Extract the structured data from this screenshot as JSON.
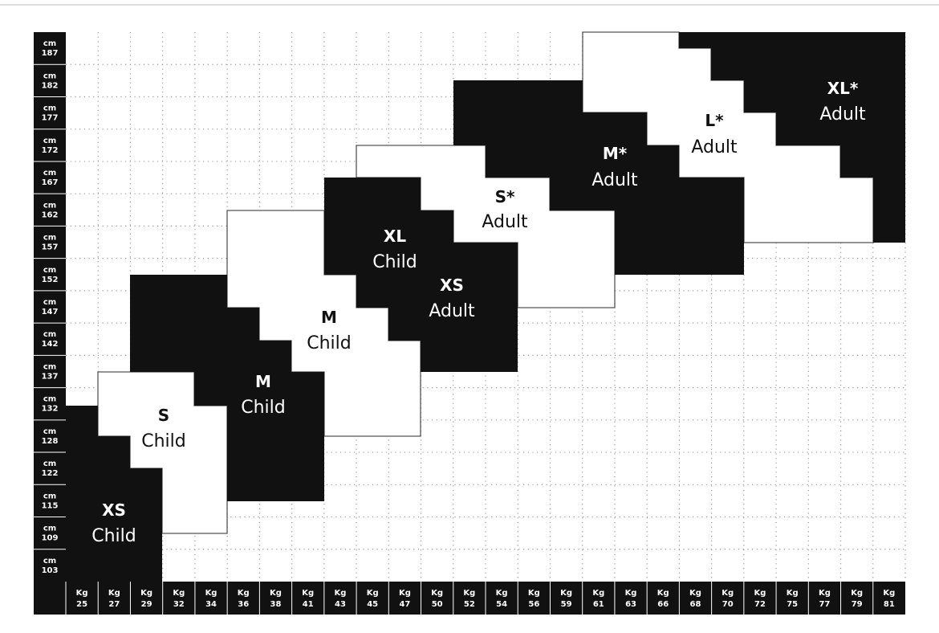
{
  "heights": [
    {
      "unit": "cm",
      "value": "187"
    },
    {
      "unit": "cm",
      "value": "182"
    },
    {
      "unit": "cm",
      "value": "177"
    },
    {
      "unit": "cm",
      "value": "172"
    },
    {
      "unit": "cm",
      "value": "167"
    },
    {
      "unit": "cm",
      "value": "162"
    },
    {
      "unit": "cm",
      "value": "157"
    },
    {
      "unit": "cm",
      "value": "152"
    },
    {
      "unit": "cm",
      "value": "147"
    },
    {
      "unit": "cm",
      "value": "142"
    },
    {
      "unit": "cm",
      "value": "137"
    },
    {
      "unit": "cm",
      "value": "132"
    },
    {
      "unit": "cm",
      "value": "128"
    },
    {
      "unit": "cm",
      "value": "122"
    },
    {
      "unit": "cm",
      "value": "115"
    },
    {
      "unit": "cm",
      "value": "109"
    },
    {
      "unit": "cm",
      "value": "103"
    }
  ],
  "weights": [
    {
      "unit": "Kg",
      "value": "25"
    },
    {
      "unit": "Kg",
      "value": "27"
    },
    {
      "unit": "Kg",
      "value": "29"
    },
    {
      "unit": "Kg",
      "value": "32"
    },
    {
      "unit": "Kg",
      "value": "34"
    },
    {
      "unit": "Kg",
      "value": "36"
    },
    {
      "unit": "Kg",
      "value": "38"
    },
    {
      "unit": "Kg",
      "value": "41"
    },
    {
      "unit": "Kg",
      "value": "43"
    },
    {
      "unit": "Kg",
      "value": "45"
    },
    {
      "unit": "Kg",
      "value": "47"
    },
    {
      "unit": "Kg",
      "value": "50"
    },
    {
      "unit": "Kg",
      "value": "52"
    },
    {
      "unit": "Kg",
      "value": "54"
    },
    {
      "unit": "Kg",
      "value": "56"
    },
    {
      "unit": "Kg",
      "value": "59"
    },
    {
      "unit": "Kg",
      "value": "61"
    },
    {
      "unit": "Kg",
      "value": "63"
    },
    {
      "unit": "Kg",
      "value": "66"
    },
    {
      "unit": "Kg",
      "value": "68"
    },
    {
      "unit": "Kg",
      "value": "70"
    },
    {
      "unit": "Kg",
      "value": "72"
    },
    {
      "unit": "Kg",
      "value": "75"
    },
    {
      "unit": "Kg",
      "value": "77"
    },
    {
      "unit": "Kg",
      "value": "79"
    },
    {
      "unit": "Kg",
      "value": "81"
    }
  ],
  "regions": [
    {
      "size": "XS",
      "group": "Child"
    },
    {
      "size": "S",
      "group": "Child"
    },
    {
      "size": "M",
      "group": "Child"
    },
    {
      "size": "M",
      "group": "Child"
    },
    {
      "size": "XL",
      "group": "Child"
    },
    {
      "size": "XS",
      "group": "Adult"
    },
    {
      "size": "S*",
      "group": "Adult"
    },
    {
      "size": "M*",
      "group": "Adult"
    },
    {
      "size": "L*",
      "group": "Adult"
    },
    {
      "size": "XL*",
      "group": "Adult"
    }
  ]
}
